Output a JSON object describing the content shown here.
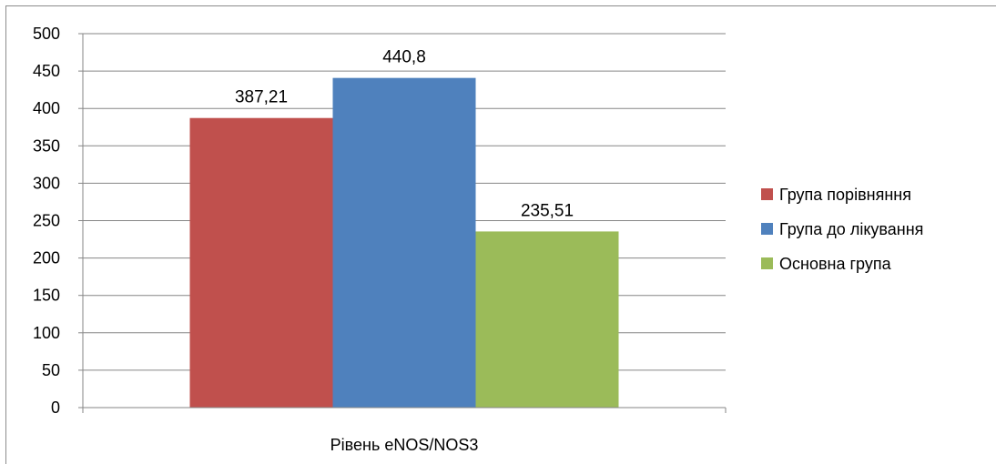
{
  "chart_data": {
    "type": "bar",
    "categories": [
      "Рівень eNOS/NOS3"
    ],
    "series": [
      {
        "name": "Група порівняння",
        "values": [
          387.21
        ],
        "color": "#c0504d",
        "label": "387,21"
      },
      {
        "name": "Група до лікування",
        "values": [
          440.8
        ],
        "color": "#4f81bd",
        "label": "440,8"
      },
      {
        "name": "Основна група",
        "values": [
          235.51
        ],
        "color": "#9bbb59",
        "label": "235,51"
      }
    ],
    "ylim": [
      0,
      500
    ],
    "yticks": [
      "0",
      "50",
      "100",
      "150",
      "200",
      "250",
      "300",
      "350",
      "400",
      "450",
      "500"
    ],
    "title": "",
    "xlabel": "",
    "ylabel": "",
    "grid": true,
    "legend_position": "right"
  }
}
